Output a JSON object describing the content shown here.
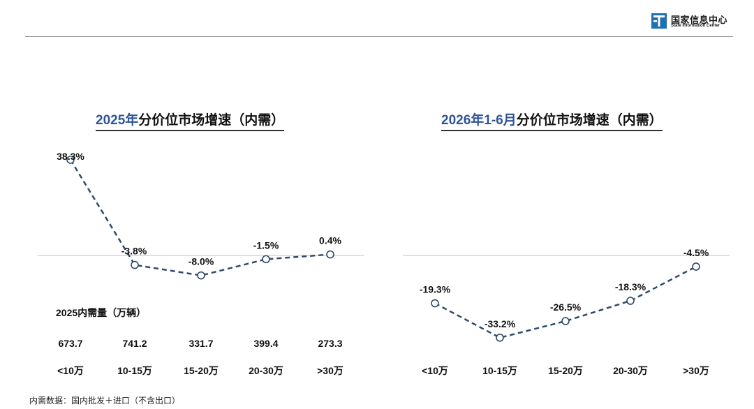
{
  "logo": {
    "name_cn": "国家信息中心",
    "name_en": "State Information Center",
    "brand_color": "#1f6fb5"
  },
  "footnote": "内需数据：国内批发＋进口（不含出口）",
  "colors": {
    "line": "#2f4a6b",
    "axis": "#bfbfbf",
    "title_highlight": "#2f5597"
  },
  "chart_data": [
    {
      "type": "line",
      "title_part1": "2025年",
      "title_part2": "分价位市场增速（内需）",
      "categories": [
        "<10万",
        "10-15万",
        "15-20万",
        "20-30万",
        ">30万"
      ],
      "series": [
        {
          "values": [
            38.3,
            -3.8,
            -8.0,
            -1.5,
            0.4
          ],
          "labels": [
            "38.3%",
            "-3.8%",
            "-8.0%",
            "-1.5%",
            "0.4%"
          ]
        }
      ],
      "table": {
        "title": "2025内需量（万辆）",
        "values": [
          "673.7",
          "741.2",
          "331.7",
          "399.4",
          "273.3"
        ]
      },
      "line_style": "dashed",
      "marker": "open-circle",
      "zero_line": true,
      "grid": false
    },
    {
      "type": "line",
      "title_part1": "2026年1-6月",
      "title_part2": "分价位市场增速（内需）",
      "categories": [
        "<10万",
        "10-15万",
        "15-20万",
        "20-30万",
        ">30万"
      ],
      "series": [
        {
          "values": [
            -19.3,
            -33.2,
            -26.5,
            -18.3,
            -4.5
          ],
          "labels": [
            "-19.3%",
            "-33.2%",
            "-26.5%",
            "-18.3%",
            "-4.5%"
          ]
        }
      ],
      "line_style": "dashed",
      "marker": "open-circle",
      "zero_line": true,
      "grid": false
    }
  ]
}
